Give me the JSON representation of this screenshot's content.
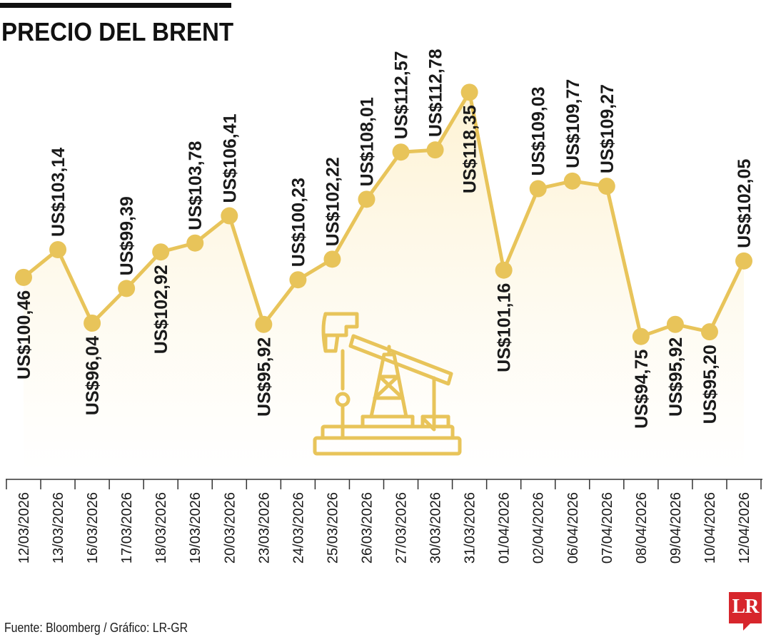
{
  "header": {
    "title": "PRECIO DEL BRENT"
  },
  "footer": {
    "source": "Fuente: Bloomberg / Gráfico: LR-GR"
  },
  "logo": {
    "text": "LR",
    "color": "#d7262c"
  },
  "colors": {
    "line": "#e8c45a",
    "area_top": "#fdf1cf",
    "area_bottom": "#ffffff",
    "axis": "#333333",
    "text": "#1a1a1a"
  },
  "icon": {
    "name": "oil-pumpjack-icon"
  },
  "chart_data": {
    "type": "line",
    "title": "PRECIO DEL BRENT",
    "xlabel": "",
    "ylabel": "",
    "grid": false,
    "categories": [
      "12/03/2026",
      "13/03/2026",
      "16/03/2026",
      "17/03/2026",
      "18/03/2026",
      "19/03/2026",
      "20/03/2026",
      "23/03/2026",
      "24/03/2026",
      "25/03/2026",
      "26/03/2026",
      "27/03/2026",
      "30/03/2026",
      "31/03/2026",
      "01/04/2026",
      "02/04/2026",
      "06/04/2026",
      "07/04/2026",
      "08/04/2026",
      "09/04/2026",
      "10/04/2026",
      "12/04/2026"
    ],
    "values": [
      100.46,
      103.14,
      96.04,
      99.39,
      102.92,
      103.78,
      106.41,
      95.92,
      100.23,
      102.22,
      108.01,
      112.57,
      112.78,
      118.35,
      101.16,
      109.03,
      109.77,
      109.27,
      94.75,
      95.92,
      95.2,
      102.05
    ],
    "labels": [
      "US$100,46",
      "US$103,14",
      "US$96,04",
      "US$99,39",
      "US$102,92",
      "US$103,78",
      "US$106,41",
      "US$95,92",
      "US$100,23",
      "US$102,22",
      "US$108,01",
      "US$112,57",
      "US$112,78",
      "US$118,35",
      "US$101,16",
      "US$109,03",
      "US$109,77",
      "US$109,27",
      "US$94,75",
      "US$95,92",
      "US$95,20",
      "US$102,05"
    ],
    "label_position": [
      "below",
      "above",
      "below",
      "above",
      "below",
      "above",
      "above",
      "below",
      "above",
      "above",
      "above",
      "above",
      "above",
      "below",
      "below",
      "above",
      "above",
      "above",
      "below",
      "below",
      "below",
      "above"
    ]
  }
}
